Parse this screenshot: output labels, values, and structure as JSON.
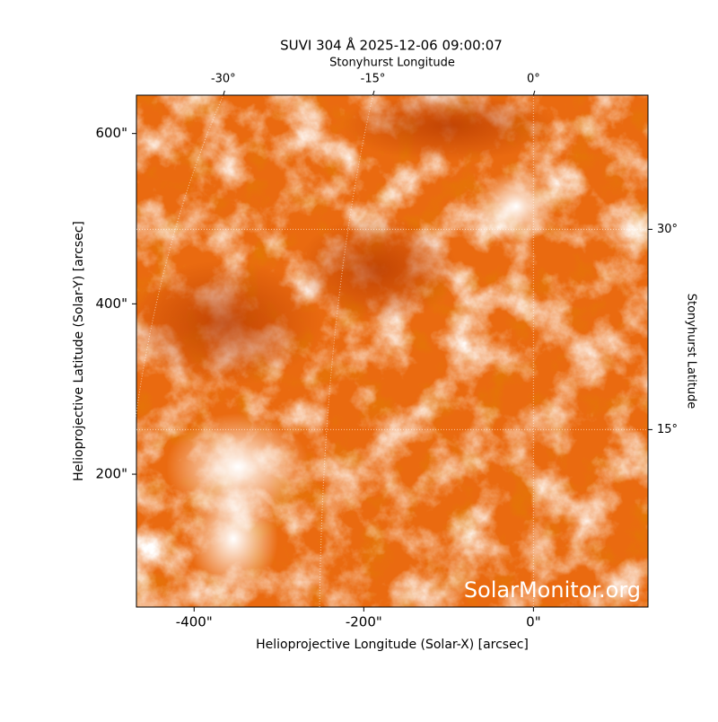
{
  "chart_data": {
    "type": "image",
    "title": "SUVI 304 Å 2025-12-06 09:00:07",
    "xlabel": "Helioprojective Longitude (Solar-X) [arcsec]",
    "ylabel": "Helioprojective Latitude (Solar-Y) [arcsec]",
    "xlim": [
      -468,
      135
    ],
    "ylim": [
      44,
      645
    ],
    "xticks": [
      {
        "value": -400,
        "label": "-400\""
      },
      {
        "value": -200,
        "label": "-200\""
      },
      {
        "value": 0,
        "label": "0\""
      }
    ],
    "yticks": [
      {
        "value": 200,
        "label": "200\""
      },
      {
        "value": 400,
        "label": "400\""
      },
      {
        "value": 600,
        "label": "600\""
      }
    ],
    "top_axis_label": "Stonyhurst Longitude",
    "right_axis_label": "Stonyhurst Latitude",
    "lon_ticks": [
      {
        "value": -30,
        "label": "-30°"
      },
      {
        "value": -15,
        "label": "-15°"
      },
      {
        "value": 0,
        "label": "0°"
      }
    ],
    "lat_ticks": [
      {
        "value": 15,
        "label": "15°"
      },
      {
        "value": 30,
        "label": "30°"
      }
    ],
    "grid": true,
    "watermark": "SolarMonitor.org"
  }
}
